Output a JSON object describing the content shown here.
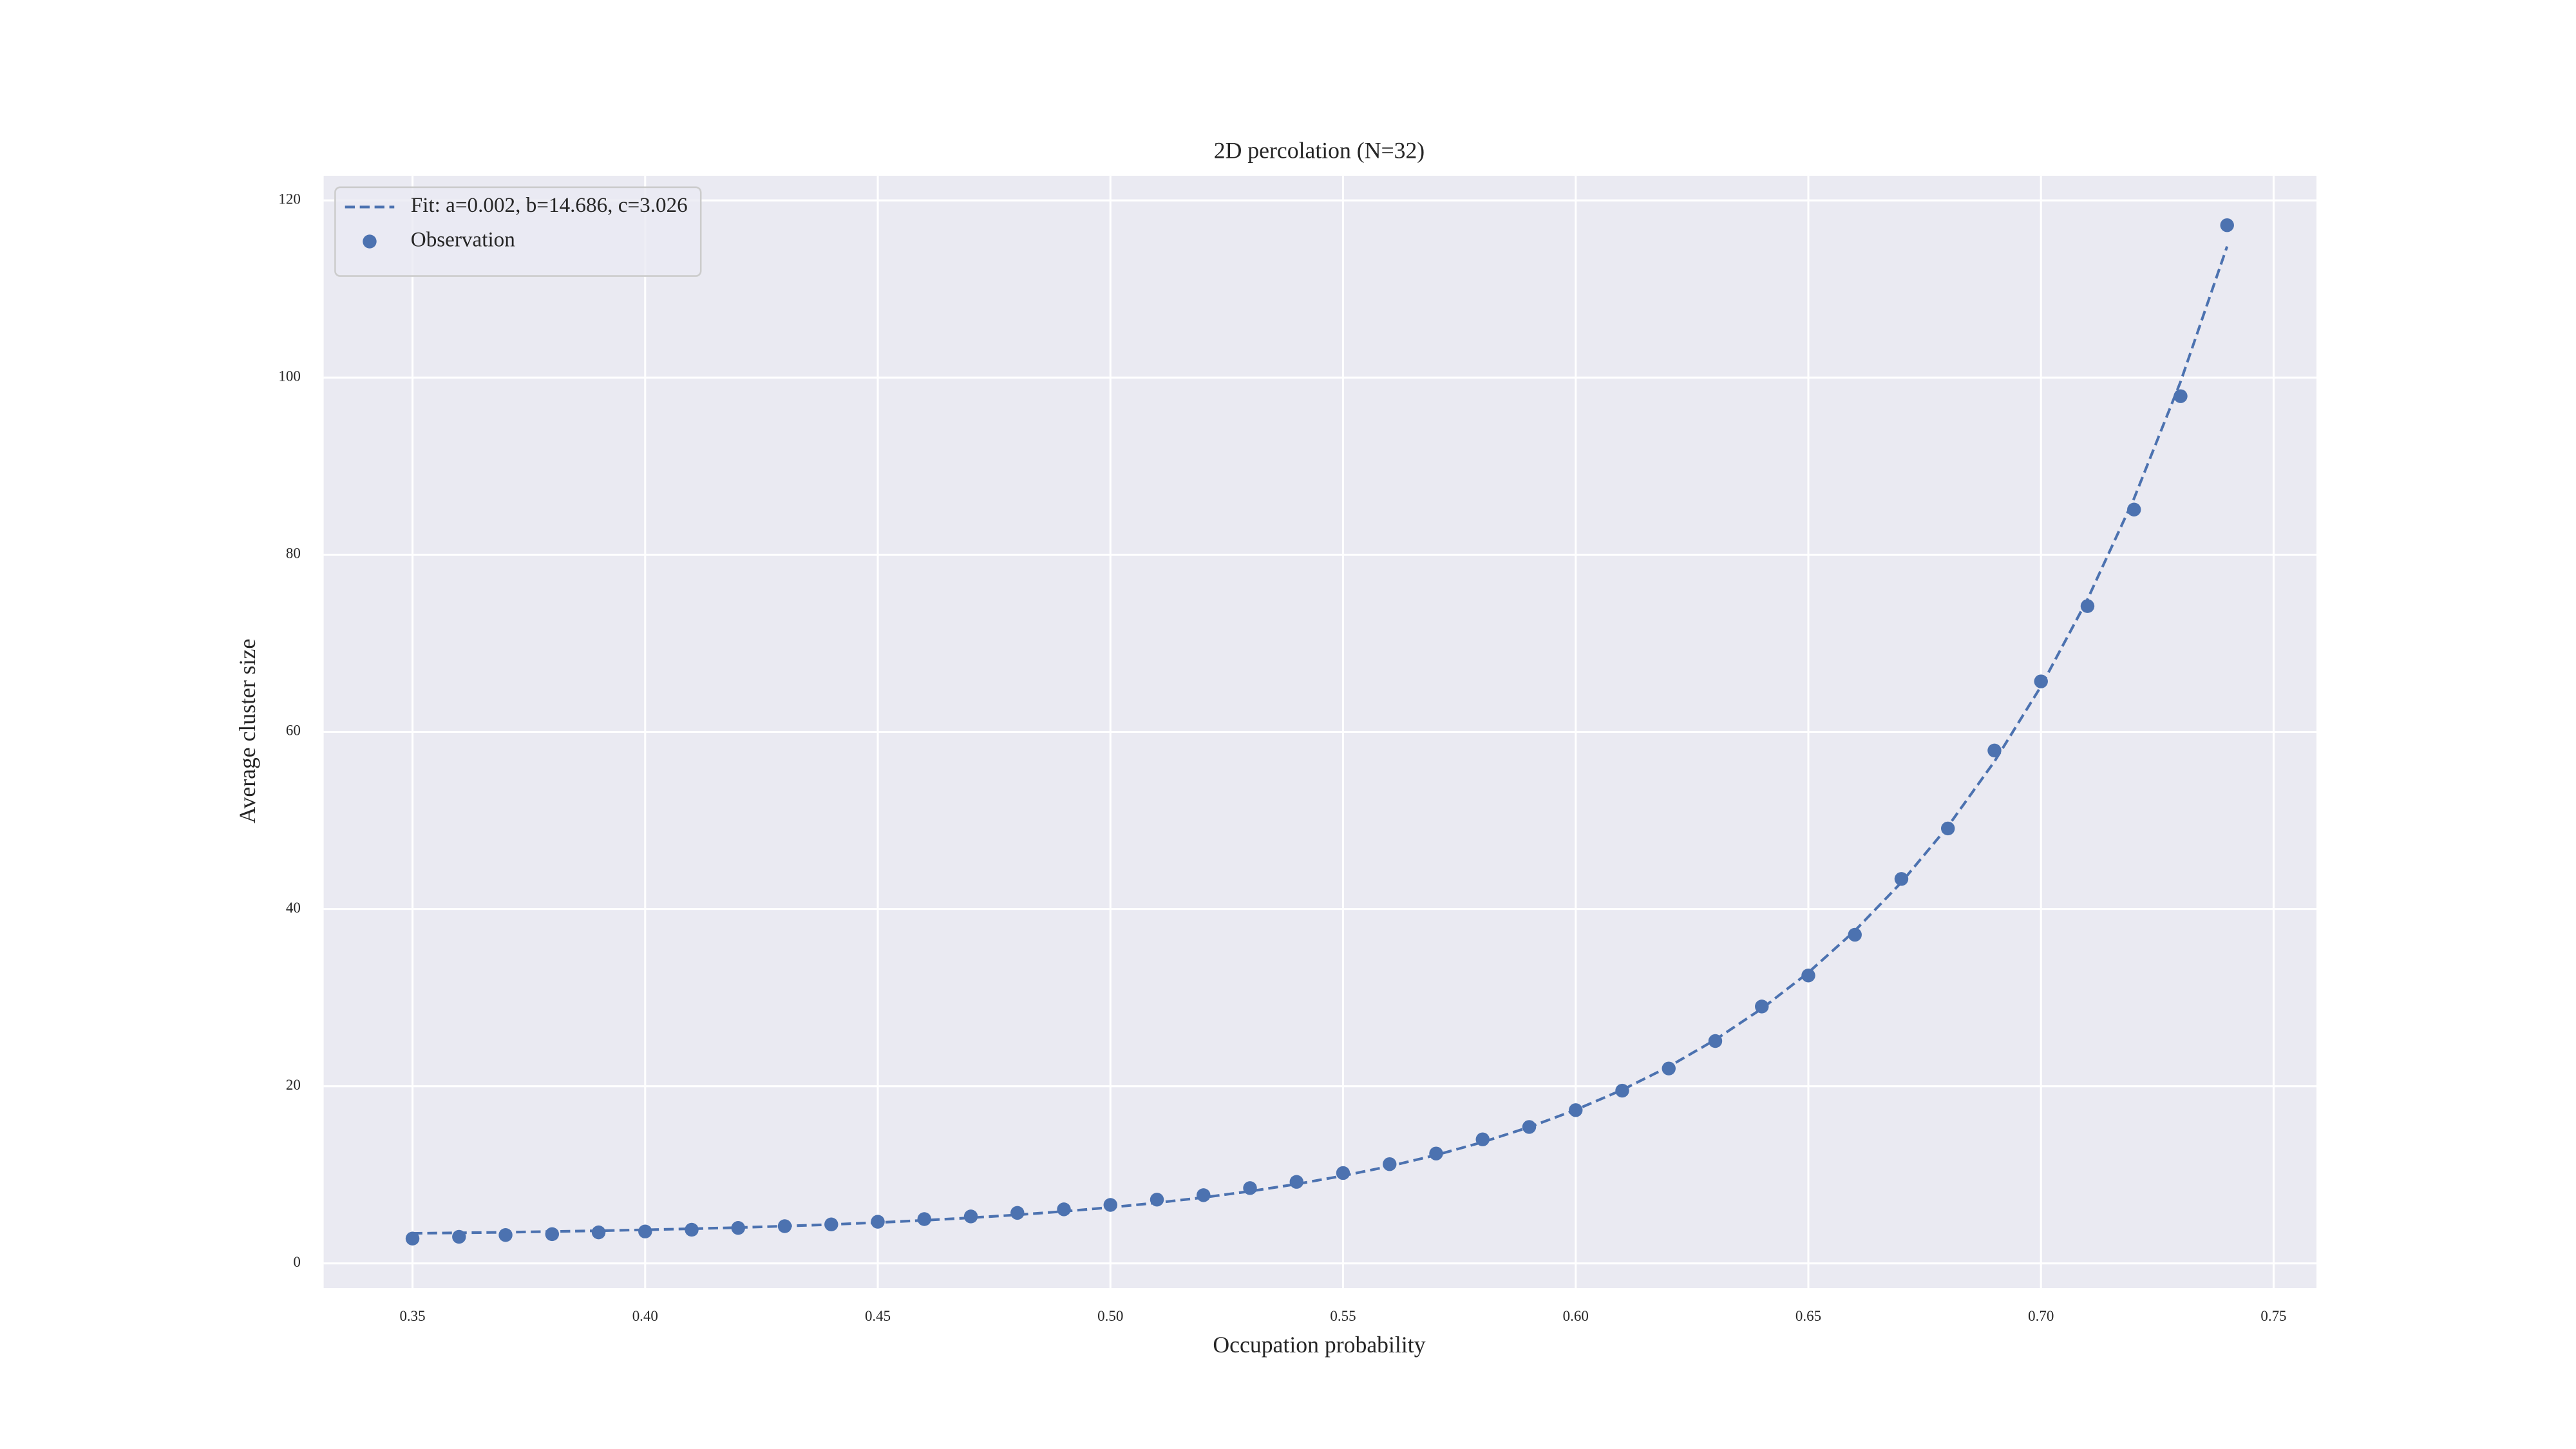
{
  "chart_data": {
    "type": "scatter",
    "title": "2D percolation (N=32)",
    "xlabel": "Occupation probability",
    "ylabel": "Average cluster size",
    "x": [
      0.35,
      0.36,
      0.37,
      0.38,
      0.39,
      0.4,
      0.41,
      0.42,
      0.43,
      0.44,
      0.45,
      0.46,
      0.47,
      0.48,
      0.49,
      0.5,
      0.51,
      0.52,
      0.53,
      0.54,
      0.55,
      0.56,
      0.57,
      0.58,
      0.59,
      0.6,
      0.61,
      0.62,
      0.63,
      0.64,
      0.65,
      0.66,
      0.67,
      0.68,
      0.69,
      0.7,
      0.71,
      0.72,
      0.73,
      0.74
    ],
    "series": [
      {
        "name": "Fit: a=0.002, b=14.686, c=3.026",
        "type": "line",
        "linestyle": "dashed",
        "color": "#4c72b0",
        "values": [
          3.39,
          3.45,
          3.51,
          3.6,
          3.68,
          3.79,
          3.91,
          4.04,
          4.21,
          4.39,
          4.61,
          4.86,
          5.15,
          5.48,
          5.87,
          6.32,
          6.84,
          7.44,
          8.14,
          8.95,
          9.89,
          10.97,
          12.23,
          13.69,
          15.38,
          17.33,
          19.59,
          22.21,
          25.25,
          28.76,
          32.83,
          37.55,
          43.01,
          49.33,
          56.66,
          65.14,
          74.97,
          86.35,
          99.53,
          114.8
        ]
      },
      {
        "name": "Observation",
        "type": "scatter",
        "color": "#4c72b0",
        "values": [
          2.8,
          3.0,
          3.2,
          3.3,
          3.5,
          3.6,
          3.8,
          4.0,
          4.2,
          4.4,
          4.7,
          5.0,
          5.3,
          5.7,
          6.1,
          6.6,
          7.2,
          7.7,
          8.5,
          9.2,
          10.2,
          11.2,
          12.4,
          14.0,
          15.4,
          17.3,
          19.5,
          22.0,
          25.1,
          29.0,
          32.5,
          37.1,
          43.4,
          49.1,
          57.9,
          65.7,
          74.2,
          85.1,
          97.9,
          117.2
        ]
      }
    ],
    "xlim": [
      0.3309,
      0.7592
    ],
    "ylim": [
      -2.78,
      122.78
    ],
    "xticks": [
      0.35,
      {
        "value": 0.4,
        "label": "0.40"
      },
      0.45,
      {
        "value": 0.5,
        "label": "0.50"
      },
      0.55,
      {
        "value": 0.6,
        "label": "0.60"
      },
      0.65,
      {
        "value": 0.7,
        "label": "0.70"
      },
      0.75
    ],
    "yticks": [
      0,
      20,
      40,
      60,
      80,
      100,
      120
    ],
    "grid": true,
    "legend": "upper left"
  }
}
